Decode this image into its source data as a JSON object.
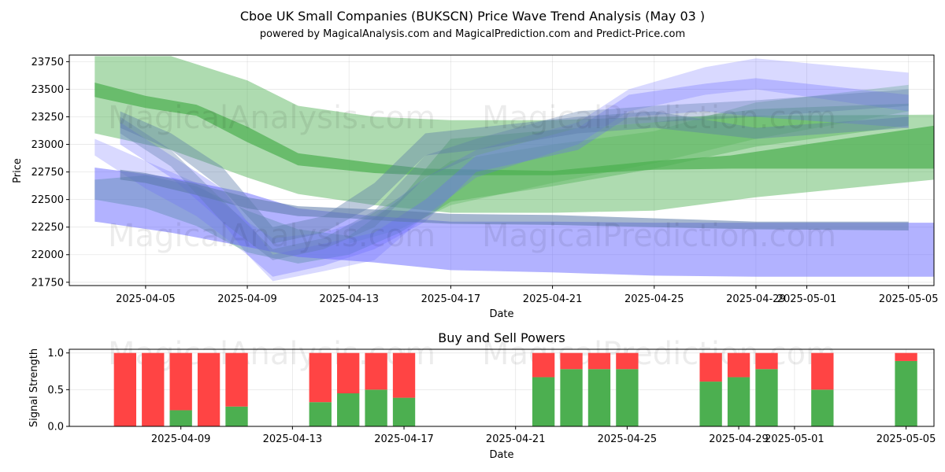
{
  "figure": {
    "title_line1": "Cboe UK Small Companies (BUKSCN) Price Wave Trend Analysis (May 03 )",
    "title_line2": "powered by MagicalAnalysis.com and MagicalPrediction.com and Predict-Price.com",
    "watermarks": [
      "MagicalAnalysis.com",
      "MagicalPrediction.com"
    ]
  },
  "chart_data": [
    {
      "type": "area",
      "name": "price-wave-chart",
      "xlabel": "Date",
      "ylabel": "Price",
      "x_range": [
        "2025-04-02",
        "2025-05-06"
      ],
      "ylim": [
        21720,
        23810
      ],
      "x_ticks": [
        "2025-04-05",
        "2025-04-09",
        "2025-04-13",
        "2025-04-17",
        "2025-04-21",
        "2025-04-25",
        "2025-04-29",
        "2025-05-01",
        "2025-05-05"
      ],
      "y_ticks": [
        21750,
        22000,
        22250,
        22500,
        22750,
        23000,
        23250,
        23500,
        23750
      ],
      "grid": true,
      "colors": {
        "green": "#4caf50",
        "blue": "#6666ff",
        "slate": "#5b7aa8"
      },
      "bands": [
        {
          "color": "green",
          "opacity": 0.45,
          "x": [
            "2025-04-03",
            "2025-04-06",
            "2025-04-09",
            "2025-04-11",
            "2025-04-14",
            "2025-04-17",
            "2025-04-21",
            "2025-04-25",
            "2025-04-29",
            "2025-05-06"
          ],
          "upper": [
            23800,
            23800,
            23580,
            23350,
            23250,
            23220,
            23220,
            23250,
            23260,
            23270
          ],
          "lower": [
            23100,
            22950,
            22700,
            22550,
            22450,
            22380,
            22380,
            22400,
            22520,
            22680
          ]
        },
        {
          "color": "green",
          "opacity": 0.4,
          "x": [
            "2025-04-03",
            "2025-04-05",
            "2025-04-07",
            "2025-04-09",
            "2025-04-11",
            "2025-04-13",
            "2025-04-15",
            "2025-04-17",
            "2025-04-21",
            "2025-04-25",
            "2025-04-29",
            "2025-05-05"
          ],
          "upper": [
            22680,
            22720,
            22620,
            22400,
            22230,
            22170,
            22500,
            23050,
            23130,
            23200,
            23320,
            23370
          ],
          "lower": [
            22500,
            22420,
            22260,
            22020,
            21920,
            22000,
            22200,
            22480,
            22620,
            22780,
            22980,
            23170
          ]
        },
        {
          "color": "green",
          "opacity": 0.3,
          "x": [
            "2025-04-13",
            "2025-04-15",
            "2025-04-17",
            "2025-04-21",
            "2025-04-25",
            "2025-04-29",
            "2025-05-05"
          ],
          "upper": [
            22250,
            22520,
            22850,
            23000,
            23120,
            23380,
            23540
          ],
          "lower": [
            22100,
            22230,
            22450,
            22650,
            22830,
            23050,
            23300
          ]
        },
        {
          "color": "green",
          "opacity": 0.7,
          "x": [
            "2025-04-03",
            "2025-04-05",
            "2025-04-07",
            "2025-04-09",
            "2025-04-11",
            "2025-04-14",
            "2025-04-16",
            "2025-04-21",
            "2025-04-25",
            "2025-04-28",
            "2025-05-06"
          ],
          "upper": [
            23560,
            23440,
            23360,
            23160,
            22920,
            22830,
            22780,
            22760,
            22850,
            22900,
            23170
          ],
          "lower": [
            23430,
            23330,
            23260,
            23020,
            22810,
            22740,
            22720,
            22720,
            22770,
            22780,
            22780
          ]
        },
        {
          "color": "blue",
          "opacity": 0.5,
          "x": [
            "2025-04-03",
            "2025-04-06",
            "2025-04-09",
            "2025-04-11",
            "2025-04-14",
            "2025-04-17",
            "2025-04-21",
            "2025-04-25",
            "2025-04-29",
            "2025-05-06"
          ],
          "upper": [
            22790,
            22700,
            22560,
            22420,
            22350,
            22300,
            22300,
            22290,
            22290,
            22290
          ],
          "lower": [
            22300,
            22200,
            22070,
            21980,
            21930,
            21860,
            21840,
            21810,
            21800,
            21800
          ]
        },
        {
          "color": "blue",
          "opacity": 0.25,
          "x": [
            "2025-04-03",
            "2025-04-05",
            "2025-04-07",
            "2025-04-09",
            "2025-04-10",
            "2025-04-12",
            "2025-04-14",
            "2025-04-16",
            "2025-04-18",
            "2025-04-22",
            "2025-04-24",
            "2025-04-27",
            "2025-04-29",
            "2025-05-05"
          ],
          "upper": [
            23050,
            22850,
            22650,
            22300,
            22150,
            22200,
            22350,
            22700,
            22950,
            23200,
            23500,
            23700,
            23780,
            23650
          ],
          "lower": [
            22900,
            22600,
            22350,
            22000,
            21760,
            21850,
            21950,
            22350,
            22700,
            23000,
            23300,
            23450,
            23500,
            23300
          ]
        },
        {
          "color": "blue",
          "opacity": 0.3,
          "x": [
            "2025-04-04",
            "2025-04-06",
            "2025-04-08",
            "2025-04-09",
            "2025-04-10",
            "2025-04-12",
            "2025-04-14",
            "2025-04-16",
            "2025-04-18",
            "2025-04-22",
            "2025-04-24",
            "2025-04-27",
            "2025-04-29",
            "2025-05-05"
          ],
          "upper": [
            23200,
            22900,
            22600,
            22300,
            22000,
            22100,
            22200,
            22500,
            22900,
            23150,
            23450,
            23550,
            23600,
            23450
          ],
          "lower": [
            23000,
            22700,
            22300,
            22000,
            21800,
            21900,
            22050,
            22300,
            22750,
            22950,
            23250,
            23300,
            23250,
            23150
          ]
        },
        {
          "color": "slate",
          "opacity": 0.55,
          "x": [
            "2025-04-04",
            "2025-04-05",
            "2025-04-07",
            "2025-04-09",
            "2025-04-11",
            "2025-04-13",
            "2025-04-15",
            "2025-04-17",
            "2025-04-21",
            "2025-04-25",
            "2025-04-29",
            "2025-05-05"
          ],
          "upper": [
            22770,
            22740,
            22640,
            22520,
            22440,
            22420,
            22400,
            22370,
            22360,
            22330,
            22300,
            22300
          ],
          "lower": [
            22680,
            22650,
            22540,
            22420,
            22350,
            22330,
            22300,
            22280,
            22270,
            22250,
            22230,
            22220
          ]
        },
        {
          "color": "slate",
          "opacity": 0.4,
          "x": [
            "2025-04-04",
            "2025-04-06",
            "2025-04-08",
            "2025-04-10",
            "2025-04-12",
            "2025-04-14",
            "2025-04-16",
            "2025-04-18",
            "2025-04-22",
            "2025-04-25",
            "2025-04-29",
            "2025-05-05"
          ],
          "upper": [
            23300,
            23100,
            22800,
            22250,
            22350,
            22650,
            23100,
            23150,
            23250,
            23300,
            23150,
            23250
          ],
          "lower": [
            23150,
            22950,
            22600,
            22100,
            22200,
            22450,
            22900,
            22950,
            23100,
            23150,
            23050,
            23150
          ]
        },
        {
          "color": "slate",
          "opacity": 0.35,
          "x": [
            "2025-04-04",
            "2025-04-06",
            "2025-04-08",
            "2025-04-10",
            "2025-04-12",
            "2025-04-14",
            "2025-04-16",
            "2025-04-18",
            "2025-04-22",
            "2025-04-25",
            "2025-04-29",
            "2025-05-05"
          ],
          "upper": [
            23250,
            22950,
            22500,
            22050,
            22150,
            22400,
            22900,
            23050,
            23300,
            23350,
            23400,
            23500
          ],
          "lower": [
            23100,
            22800,
            22300,
            21950,
            22050,
            22250,
            22700,
            22900,
            23150,
            23200,
            23250,
            23350
          ]
        }
      ]
    },
    {
      "type": "bar",
      "name": "buy-sell-powers-chart",
      "title": "Buy and Sell Powers",
      "xlabel": "Date",
      "ylabel": "Signal Strength",
      "x_range": [
        "2025-04-05",
        "2025-05-06"
      ],
      "ylim": [
        0,
        1.05
      ],
      "x_ticks": [
        "2025-04-09",
        "2025-04-13",
        "2025-04-17",
        "2025-04-21",
        "2025-04-25",
        "2025-04-29",
        "2025-05-01",
        "2025-05-05"
      ],
      "y_ticks": [
        0.0,
        0.5,
        1.0
      ],
      "y_tick_labels": [
        "0.0",
        "0.5",
        "1.0"
      ],
      "grid": true,
      "colors": {
        "buy": "#4caf50",
        "sell": "#ff4444"
      },
      "dates": [
        "2025-04-07",
        "2025-04-08",
        "2025-04-09",
        "2025-04-10",
        "2025-04-11",
        "2025-04-14",
        "2025-04-15",
        "2025-04-16",
        "2025-04-17",
        "2025-04-22",
        "2025-04-23",
        "2025-04-24",
        "2025-04-25",
        "2025-04-28",
        "2025-04-29",
        "2025-04-30",
        "2025-05-02",
        "2025-05-05"
      ],
      "buy": [
        0,
        0,
        0.22,
        0,
        0.27,
        0.33,
        0.45,
        0.5,
        0.39,
        0.67,
        0.78,
        0.78,
        0.78,
        0.61,
        0.67,
        0.78,
        0.5,
        0.89
      ],
      "sell": [
        1,
        1,
        0.78,
        1,
        0.73,
        0.67,
        0.55,
        0.5,
        0.61,
        0.33,
        0.22,
        0.22,
        0.22,
        0.39,
        0.33,
        0.22,
        0.5,
        0.11
      ]
    }
  ]
}
